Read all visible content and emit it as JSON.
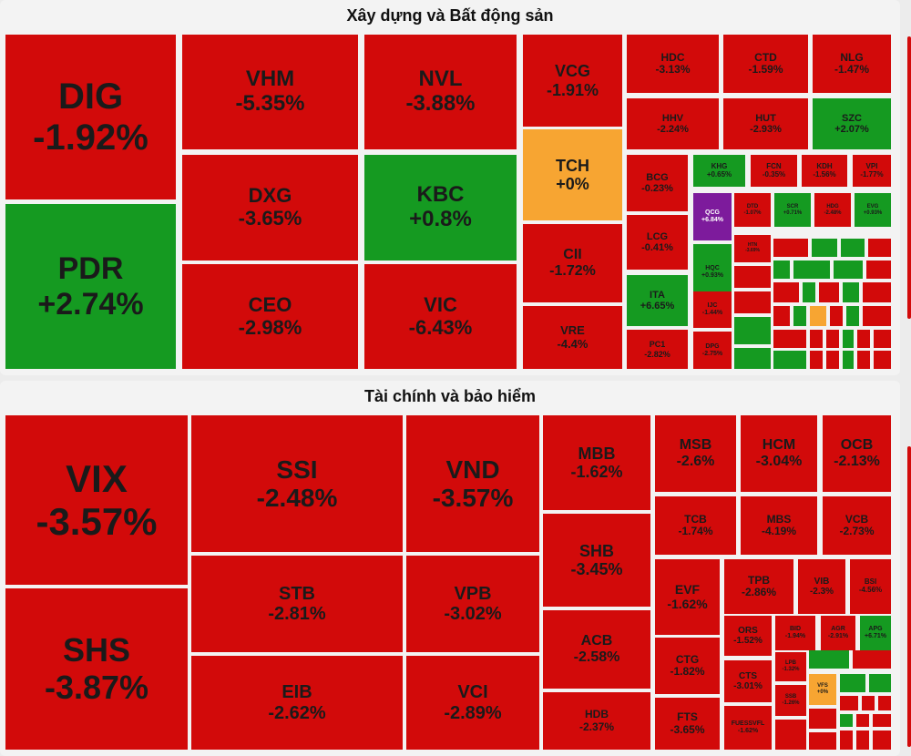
{
  "colors": {
    "down": "#d20a0a",
    "up": "#159a21",
    "flat": "#f7a532",
    "ceiling": "#7d1b9c"
  },
  "sections": [
    {
      "title": "Xây dựng và Bất động sản",
      "tiles": [
        {
          "s": "DIG",
          "c": "-1.92%",
          "t": "down"
        },
        {
          "s": "PDR",
          "c": "+2.74%",
          "t": "up"
        },
        {
          "s": "VHM",
          "c": "-5.35%",
          "t": "down"
        },
        {
          "s": "DXG",
          "c": "-3.65%",
          "t": "down"
        },
        {
          "s": "CEO",
          "c": "-2.98%",
          "t": "down"
        },
        {
          "s": "NVL",
          "c": "-3.88%",
          "t": "down"
        },
        {
          "s": "KBC",
          "c": "+0.8%",
          "t": "up"
        },
        {
          "s": "VIC",
          "c": "-6.43%",
          "t": "down"
        },
        {
          "s": "VCG",
          "c": "-1.91%",
          "t": "down"
        },
        {
          "s": "TCH",
          "c": "+0%",
          "t": "flat"
        },
        {
          "s": "CII",
          "c": "-1.72%",
          "t": "down"
        },
        {
          "s": "VRE",
          "c": "-4.4%",
          "t": "down"
        },
        {
          "s": "HDC",
          "c": "-3.13%",
          "t": "down"
        },
        {
          "s": "CTD",
          "c": "-1.59%",
          "t": "down"
        },
        {
          "s": "NLG",
          "c": "-1.47%",
          "t": "down"
        },
        {
          "s": "HHV",
          "c": "-2.24%",
          "t": "down"
        },
        {
          "s": "HUT",
          "c": "-2.93%",
          "t": "down"
        },
        {
          "s": "SZC",
          "c": "+2.07%",
          "t": "up"
        },
        {
          "s": "BCG",
          "c": "-0.23%",
          "t": "down"
        },
        {
          "s": "KHG",
          "c": "+0.65%",
          "t": "up"
        },
        {
          "s": "FCN",
          "c": "-0.35%",
          "t": "down"
        },
        {
          "s": "KDH",
          "c": "-1.56%",
          "t": "down"
        },
        {
          "s": "VPI",
          "c": "-1.77%",
          "t": "down"
        },
        {
          "s": "QCG",
          "c": "+6.84%",
          "t": "ceiling"
        },
        {
          "s": "DTD",
          "c": "-1.07%",
          "t": "down"
        },
        {
          "s": "SCR",
          "c": "+0.71%",
          "t": "up"
        },
        {
          "s": "HDG",
          "c": "-2.48%",
          "t": "down"
        },
        {
          "s": "EVG",
          "c": "+0.93%",
          "t": "up"
        },
        {
          "s": "LCG",
          "c": "-0.41%",
          "t": "down"
        },
        {
          "s": "HQC",
          "c": "+0.93%",
          "t": "up"
        },
        {
          "s": "HTN",
          "c": "-3.69%",
          "t": "down"
        },
        {
          "s": "ITA",
          "c": "+6.65%",
          "t": "up"
        },
        {
          "s": "IJC",
          "c": "-1.44%",
          "t": "down"
        },
        {
          "s": "PC1",
          "c": "-2.82%",
          "t": "down"
        },
        {
          "s": "DPG",
          "c": "-2.75%",
          "t": "down"
        }
      ]
    },
    {
      "title": "Tài chính và bảo hiểm",
      "tiles": [
        {
          "s": "VIX",
          "c": "-3.57%",
          "t": "down"
        },
        {
          "s": "SHS",
          "c": "-3.87%",
          "t": "down"
        },
        {
          "s": "SSI",
          "c": "-2.48%",
          "t": "down"
        },
        {
          "s": "STB",
          "c": "-2.81%",
          "t": "down"
        },
        {
          "s": "EIB",
          "c": "-2.62%",
          "t": "down"
        },
        {
          "s": "VND",
          "c": "-3.57%",
          "t": "down"
        },
        {
          "s": "VPB",
          "c": "-3.02%",
          "t": "down"
        },
        {
          "s": "VCI",
          "c": "-2.89%",
          "t": "down"
        },
        {
          "s": "MBB",
          "c": "-1.62%",
          "t": "down"
        },
        {
          "s": "SHB",
          "c": "-3.45%",
          "t": "down"
        },
        {
          "s": "ACB",
          "c": "-2.58%",
          "t": "down"
        },
        {
          "s": "HDB",
          "c": "-2.37%",
          "t": "down"
        },
        {
          "s": "MSB",
          "c": "-2.6%",
          "t": "down"
        },
        {
          "s": "HCM",
          "c": "-3.04%",
          "t": "down"
        },
        {
          "s": "OCB",
          "c": "-2.13%",
          "t": "down"
        },
        {
          "s": "TCB",
          "c": "-1.74%",
          "t": "down"
        },
        {
          "s": "MBS",
          "c": "-4.19%",
          "t": "down"
        },
        {
          "s": "VCB",
          "c": "-2.73%",
          "t": "down"
        },
        {
          "s": "EVF",
          "c": "-1.62%",
          "t": "down"
        },
        {
          "s": "TPB",
          "c": "-2.86%",
          "t": "down"
        },
        {
          "s": "VIB",
          "c": "-2.3%",
          "t": "down"
        },
        {
          "s": "BSI",
          "c": "-4.56%",
          "t": "down"
        },
        {
          "s": "ORS",
          "c": "-1.52%",
          "t": "down"
        },
        {
          "s": "BID",
          "c": "-1.94%",
          "t": "down"
        },
        {
          "s": "AGR",
          "c": "-2.91%",
          "t": "down"
        },
        {
          "s": "APG",
          "c": "+6.71%",
          "t": "up"
        },
        {
          "s": "CTG",
          "c": "-1.82%",
          "t": "down"
        },
        {
          "s": "CTS",
          "c": "-3.01%",
          "t": "down"
        },
        {
          "s": "LPB",
          "c": "-1.32%",
          "t": "down"
        },
        {
          "s": "VFS",
          "c": "+0%",
          "t": "flat"
        },
        {
          "s": "SSB",
          "c": "-1.26%",
          "t": "down"
        },
        {
          "s": "FTS",
          "c": "-3.65%",
          "t": "down"
        },
        {
          "s": "FUESSVFL",
          "c": "-1.62%",
          "t": "down"
        }
      ]
    }
  ],
  "chart_data": [
    {
      "type": "treemap",
      "title": "Xây dựng và Bất động sản",
      "categories": [
        "DIG",
        "PDR",
        "VHM",
        "DXG",
        "CEO",
        "NVL",
        "KBC",
        "VIC",
        "VCG",
        "TCH",
        "CII",
        "VRE",
        "HDC",
        "CTD",
        "NLG",
        "HHV",
        "HUT",
        "SZC",
        "BCG",
        "KHG",
        "FCN",
        "KDH",
        "VPI",
        "QCG",
        "DTD",
        "SCR",
        "HDG",
        "EVG",
        "LCG",
        "HQC",
        "HTN",
        "ITA",
        "IJC",
        "PC1",
        "DPG"
      ],
      "values": [
        -1.92,
        2.74,
        -5.35,
        -3.65,
        -2.98,
        -3.88,
        0.8,
        -6.43,
        -1.91,
        0,
        -1.72,
        -4.4,
        -3.13,
        -1.59,
        -1.47,
        -2.24,
        -2.93,
        2.07,
        -0.23,
        0.65,
        -0.35,
        -1.56,
        -1.77,
        6.84,
        -1.07,
        0.71,
        -2.48,
        0.93,
        -0.41,
        0.93,
        -3.69,
        6.65,
        -1.44,
        -2.82,
        -2.75
      ],
      "unit": "%"
    },
    {
      "type": "treemap",
      "title": "Tài chính và bảo hiểm",
      "categories": [
        "VIX",
        "SHS",
        "SSI",
        "STB",
        "EIB",
        "VND",
        "VPB",
        "VCI",
        "MBB",
        "SHB",
        "ACB",
        "HDB",
        "MSB",
        "HCM",
        "OCB",
        "TCB",
        "MBS",
        "VCB",
        "EVF",
        "TPB",
        "VIB",
        "BSI",
        "ORS",
        "BID",
        "AGR",
        "APG",
        "CTG",
        "CTS",
        "LPB",
        "VFS",
        "SSB",
        "FTS",
        "FUESSVFL"
      ],
      "values": [
        -3.57,
        -3.87,
        -2.48,
        -2.81,
        -2.62,
        -3.57,
        -3.02,
        -2.89,
        -1.62,
        -3.45,
        -2.58,
        -2.37,
        -2.6,
        -3.04,
        -2.13,
        -1.74,
        -4.19,
        -2.73,
        -1.62,
        -2.86,
        -2.3,
        -4.56,
        -1.52,
        -1.94,
        -2.91,
        6.71,
        -1.82,
        -3.01,
        -1.32,
        0,
        -1.26,
        -3.65,
        -1.62
      ],
      "unit": "%"
    }
  ]
}
